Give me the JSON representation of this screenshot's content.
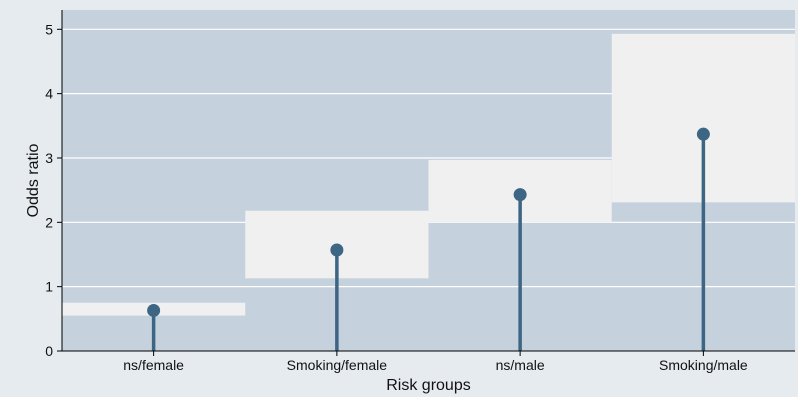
{
  "chart_data": {
    "type": "lollipop",
    "categories": [
      "ns/female",
      "Smoking/female",
      "ns/male",
      "Smoking/male"
    ],
    "values": [
      0.63,
      1.57,
      2.43,
      3.37
    ],
    "ci_lower": [
      0.55,
      1.13,
      2.0,
      2.31
    ],
    "ci_upper": [
      0.75,
      2.18,
      2.97,
      4.93
    ],
    "xlabel": "Risk groups",
    "ylabel": "Odds ratio",
    "ylim": [
      0,
      5.3
    ],
    "yticks": [
      0,
      1,
      2,
      3,
      4,
      5
    ],
    "grid": true,
    "colors": {
      "plot_background": "#c5d1dd",
      "frame_background": "#e6ebf0",
      "ci_band": "#f0f0f0",
      "stem": "#3d6584",
      "marker": "#3d6584",
      "gridline": "#ffffff"
    }
  }
}
